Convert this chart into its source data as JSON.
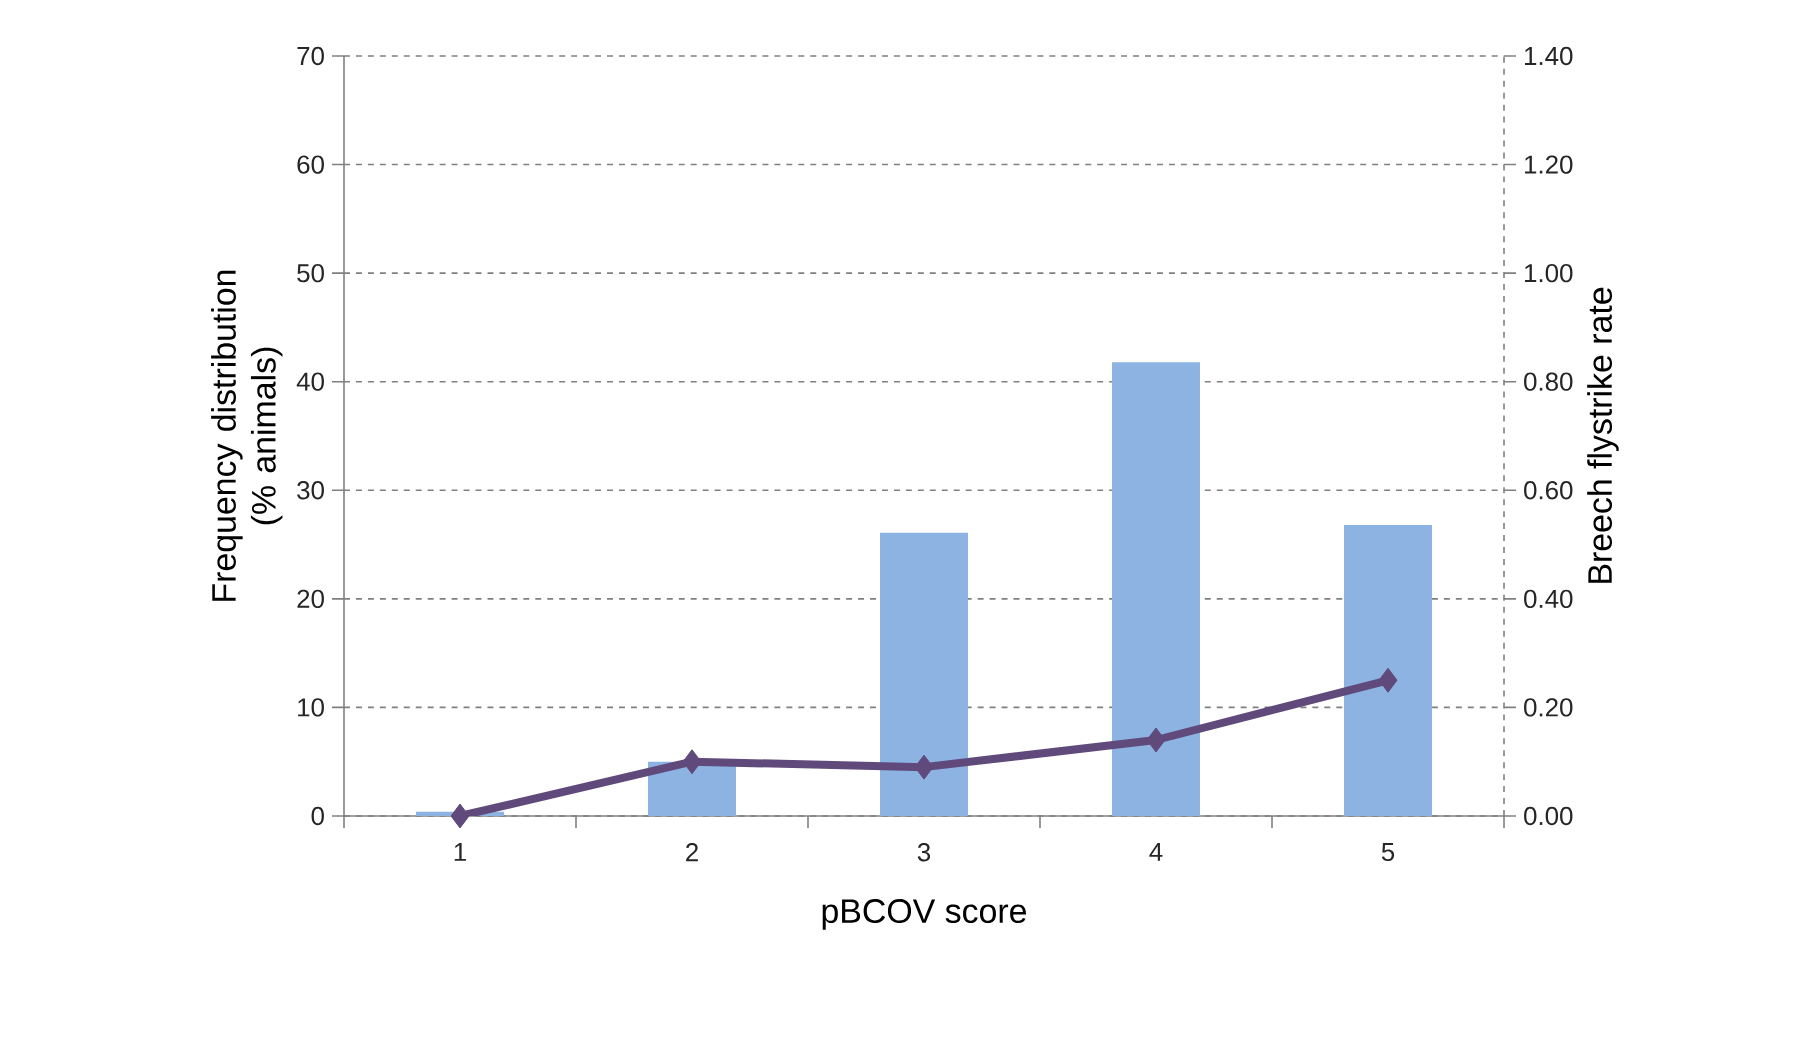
{
  "chart_data": {
    "type": "bar",
    "xlabel": "pBCOV score",
    "ylabel": "Frequency distribution (% animals)",
    "y2label": "Breech flystrike rate",
    "categories": [
      "1",
      "2",
      "3",
      "4",
      "5"
    ],
    "series": [
      {
        "color": "#8db3e2",
        "values": [
          0.4,
          5.0,
          26.1,
          41.8,
          26.8
        ]
      },
      {
        "type": "line",
        "axis": "y2",
        "color": "#604a7b",
        "values": [
          0.0,
          0.1,
          0.09,
          0.14,
          0.25
        ]
      }
    ],
    "ylim": [
      0,
      70
    ],
    "yticks": [
      0,
      10,
      20,
      30,
      40,
      50,
      60,
      70
    ],
    "y2lim": [
      0,
      1.4
    ],
    "y2ticks": [
      {
        "value": 0,
        "label": "0.00"
      },
      {
        "value": 0.2,
        "label": "0.20"
      },
      {
        "value": 0.4,
        "label": "0.40"
      },
      {
        "value": 0.6,
        "label": "0.60"
      },
      {
        "value": 0.8,
        "label": "0.80"
      },
      {
        "value": 1.0,
        "label": "1.00"
      },
      {
        "value": 1.2,
        "label": "1.20"
      },
      {
        "value": 1.4,
        "label": "1.40"
      }
    ],
    "grid": "y",
    "legend": false,
    "marker": "diamond"
  }
}
